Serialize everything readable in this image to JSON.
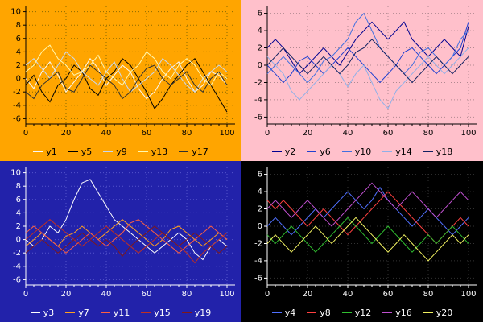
{
  "chart_data": [
    {
      "type": "line",
      "title": "",
      "xlabel": "",
      "ylabel": "",
      "bg": "#FFA500",
      "text_color": "#000000",
      "grid_color": "#8a6a00",
      "legend_position": "bottom",
      "grid": true,
      "xlim": [
        0,
        104
      ],
      "ylim": [
        -6.8,
        10.8
      ],
      "xticks": [
        0,
        20,
        40,
        60,
        80,
        100
      ],
      "yticks": [
        -6,
        -4,
        -2,
        0,
        2,
        4,
        6,
        8,
        10
      ],
      "x_start": 0,
      "x_step": 4,
      "series": [
        {
          "name": "y1",
          "color": "#f8f8f8",
          "values": [
            0,
            -1.5,
            1,
            2.5,
            0.5,
            -2,
            -0.5,
            1,
            3,
            1.5,
            -1,
            0.5,
            2,
            1,
            -1.5,
            -3,
            -2,
            0,
            1.5,
            2.5,
            0,
            -2,
            -1,
            1,
            0.5,
            -1
          ]
        },
        {
          "name": "y5",
          "color": "#000000",
          "values": [
            -1,
            0.5,
            -2,
            -3.5,
            -1,
            0,
            2,
            1,
            -1.5,
            -2.5,
            0,
            1,
            3,
            2,
            0,
            -2,
            -4.5,
            -3,
            -1,
            0.5,
            2,
            3,
            1,
            -1,
            -3,
            -5
          ]
        },
        {
          "name": "y9",
          "color": "#c8d8f0",
          "values": [
            2,
            3,
            1.5,
            0,
            2,
            4,
            3,
            1,
            0,
            -1,
            1,
            2.5,
            0,
            -2,
            -1,
            0,
            1,
            3,
            2,
            0.5,
            -1,
            -2,
            0,
            1,
            2,
            1
          ]
        },
        {
          "name": "y13",
          "color": "#fff8b0",
          "values": [
            1,
            2,
            4,
            5,
            3,
            2,
            0.5,
            1,
            2,
            3.5,
            1,
            0,
            -1,
            1,
            2,
            4,
            3,
            1,
            0,
            2,
            3,
            2,
            0,
            -1,
            1,
            0
          ]
        },
        {
          "name": "y17",
          "color": "#303030",
          "values": [
            -2,
            -3,
            -1,
            0,
            1,
            -1.5,
            -2,
            0,
            2,
            1,
            0,
            -1,
            -3,
            -2,
            0,
            1.5,
            2,
            0,
            -1,
            0,
            1,
            -1,
            -2,
            0,
            1,
            -1
          ]
        }
      ]
    },
    {
      "type": "line",
      "title": "",
      "xlabel": "",
      "ylabel": "",
      "bg": "#FFC0CB",
      "text_color": "#000000",
      "grid_color": "#b08890",
      "legend_position": "bottom",
      "grid": true,
      "xlim": [
        0,
        104
      ],
      "ylim": [
        -6.8,
        6.8
      ],
      "xticks": [
        0,
        20,
        40,
        60,
        80,
        100
      ],
      "yticks": [
        -6,
        -4,
        -2,
        0,
        2,
        4,
        6
      ],
      "x_start": 0,
      "x_step": 4,
      "series": [
        {
          "name": "y2",
          "color": "#000090",
          "values": [
            2,
            3,
            2,
            0.5,
            -1,
            0,
            1,
            2,
            1,
            0,
            1.5,
            3,
            4,
            5,
            4,
            3,
            4,
            5,
            3,
            2,
            1,
            2,
            3,
            2,
            1,
            4.5
          ]
        },
        {
          "name": "y6",
          "color": "#2040d0",
          "values": [
            0,
            -1,
            -2,
            -1,
            0.5,
            1,
            0,
            -1,
            0,
            1,
            2,
            1,
            0,
            -1,
            -2,
            -1,
            0,
            1.5,
            2,
            1,
            0,
            -1,
            0,
            1,
            2,
            5
          ]
        },
        {
          "name": "y10",
          "color": "#4070e0",
          "values": [
            -1,
            0,
            1,
            0,
            -1,
            -2,
            -1,
            0.5,
            1,
            2,
            3,
            5,
            6,
            4,
            2,
            1,
            0,
            -1,
            0,
            1.5,
            2,
            1,
            0,
            1,
            3,
            4
          ]
        },
        {
          "name": "y14",
          "color": "#90b0e8",
          "values": [
            1,
            0,
            -1,
            -3,
            -4,
            -3,
            -2,
            -1,
            0,
            -1,
            -2.5,
            -1,
            0,
            -2,
            -4,
            -5,
            -3,
            -2,
            -1,
            0,
            1,
            0,
            -1,
            0,
            1,
            2
          ]
        },
        {
          "name": "y18",
          "color": "#102060",
          "values": [
            0,
            1,
            2,
            1,
            0,
            -1,
            0,
            1,
            0,
            -1,
            0,
            1.5,
            2,
            3,
            2,
            1,
            0,
            -1,
            -2,
            -1,
            0,
            1,
            0,
            -1,
            0,
            1
          ]
        }
      ]
    },
    {
      "type": "line",
      "title": "",
      "xlabel": "",
      "ylabel": "",
      "bg": "#2222AA",
      "text_color": "#ffffff",
      "grid_color": "#5555cc",
      "legend_position": "bottom",
      "grid": true,
      "xlim": [
        0,
        104
      ],
      "ylim": [
        -6.8,
        10.8
      ],
      "xticks": [
        0,
        20,
        40,
        60,
        80,
        100
      ],
      "yticks": [
        -6,
        -4,
        -2,
        0,
        2,
        4,
        6,
        8,
        10
      ],
      "x_start": 0,
      "x_step": 4,
      "series": [
        {
          "name": "y3",
          "color": "#ffffff",
          "values": [
            0,
            -1,
            0,
            2,
            1,
            3,
            6,
            8.5,
            9,
            7,
            5,
            3,
            2,
            1,
            0,
            -1,
            -2,
            -1,
            0,
            1,
            0,
            -2,
            -3,
            -1,
            0,
            -1
          ]
        },
        {
          "name": "y7",
          "color": "#ffa020",
          "values": [
            -1,
            0,
            1,
            0,
            -1,
            0.5,
            1,
            2,
            1,
            0,
            1,
            2,
            3,
            2,
            1,
            0,
            -1,
            0,
            1.5,
            2,
            1,
            0,
            -1,
            0,
            1,
            0
          ]
        },
        {
          "name": "y11",
          "color": "#ff6040",
          "values": [
            1,
            2,
            1,
            0,
            -1,
            -2,
            -1,
            0,
            1,
            0,
            -1,
            0,
            1,
            2.5,
            3,
            2,
            1,
            0,
            -1,
            -2,
            -1,
            0,
            1,
            2,
            1,
            0
          ]
        },
        {
          "name": "y15",
          "color": "#c03020",
          "values": [
            0,
            1,
            2,
            3,
            2,
            1,
            0,
            -1,
            0,
            1,
            2,
            1,
            0,
            -1,
            -2,
            -1,
            0,
            1,
            0,
            -1,
            -2,
            -3.5,
            -2,
            -1,
            0,
            1
          ]
        },
        {
          "name": "y19",
          "color": "#801818",
          "values": [
            -2,
            -1,
            0,
            -1,
            -2,
            -1,
            0,
            1,
            0,
            -1,
            0,
            -1,
            -2.5,
            -1,
            0,
            1,
            2,
            1,
            0,
            -1,
            0,
            1,
            0,
            -1,
            -2,
            -1
          ]
        }
      ]
    },
    {
      "type": "line",
      "title": "",
      "xlabel": "",
      "ylabel": "",
      "bg": "#000000",
      "text_color": "#ffffff",
      "grid_color": "#333333",
      "legend_position": "bottom",
      "grid": true,
      "xlim": [
        0,
        104
      ],
      "ylim": [
        -6.8,
        6.8
      ],
      "xticks": [
        0,
        20,
        40,
        60,
        80,
        100
      ],
      "yticks": [
        -6,
        -4,
        -2,
        0,
        2,
        4,
        6
      ],
      "x_start": 0,
      "x_step": 4,
      "series": [
        {
          "name": "y4",
          "color": "#5070ff",
          "values": [
            0,
            1,
            0,
            -1,
            0,
            1,
            2,
            1,
            2,
            3,
            4,
            3,
            2,
            3,
            4.5,
            3,
            2,
            1,
            0,
            1,
            2,
            1,
            0,
            -1,
            0,
            1
          ]
        },
        {
          "name": "y8",
          "color": "#ff4040",
          "values": [
            3,
            2,
            3,
            2,
            1,
            0,
            1,
            2,
            1,
            0,
            -1,
            0,
            1,
            2,
            3,
            4,
            3,
            2,
            1,
            0,
            -1,
            -2,
            -1,
            0,
            1,
            0
          ]
        },
        {
          "name": "y12",
          "color": "#30c030",
          "values": [
            -1,
            -2,
            -1,
            0,
            -1,
            -2,
            -3,
            -2,
            -1,
            0,
            1,
            0,
            -1,
            -2,
            -1,
            0,
            -1,
            -2,
            -3,
            -2,
            -1,
            -2,
            -1,
            0,
            -1,
            -2
          ]
        },
        {
          "name": "y16",
          "color": "#c050d0",
          "values": [
            2,
            3,
            2,
            1,
            2,
            3,
            2,
            1,
            0,
            1,
            2,
            3,
            4,
            5,
            4,
            3,
            2,
            3,
            4,
            3,
            2,
            1,
            2,
            3,
            4,
            3
          ]
        },
        {
          "name": "y20",
          "color": "#f0f060",
          "values": [
            -2,
            -1,
            -2,
            -3,
            -2,
            -1,
            0,
            -1,
            -2,
            -1,
            0,
            1,
            0,
            -1,
            -2,
            -3,
            -2,
            -1,
            -2,
            -3,
            -4,
            -3,
            -2,
            -1,
            -2,
            -1
          ]
        }
      ]
    }
  ]
}
